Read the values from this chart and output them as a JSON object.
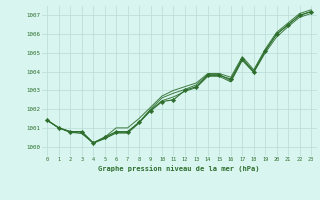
{
  "x": [
    0,
    1,
    2,
    3,
    4,
    5,
    6,
    7,
    8,
    9,
    10,
    11,
    12,
    13,
    14,
    15,
    16,
    17,
    18,
    19,
    20,
    21,
    22,
    23
  ],
  "line1": [
    1001.4,
    1001.0,
    1000.8,
    1000.8,
    1000.2,
    1000.5,
    1000.8,
    1000.8,
    1001.3,
    1001.9,
    1002.4,
    1002.5,
    1003.0,
    1003.2,
    1003.8,
    1003.8,
    1003.6,
    1004.7,
    1004.0,
    1005.1,
    1006.0,
    1006.5,
    1007.0,
    1007.2
  ],
  "line2": [
    1001.4,
    1001.0,
    1000.8,
    1000.7,
    1000.2,
    1000.45,
    1000.75,
    1000.75,
    1001.3,
    1002.0,
    1002.6,
    1002.85,
    1003.05,
    1003.3,
    1003.85,
    1003.85,
    1003.5,
    1004.65,
    1004.0,
    1005.1,
    1006.0,
    1006.5,
    1007.0,
    1007.2
  ],
  "line3": [
    1001.4,
    1001.0,
    1000.75,
    1000.72,
    1000.18,
    1000.42,
    1000.72,
    1000.72,
    1001.25,
    1001.95,
    1002.45,
    1002.65,
    1002.95,
    1003.15,
    1003.75,
    1003.75,
    1003.45,
    1004.6,
    1003.95,
    1005.0,
    1005.85,
    1006.4,
    1006.9,
    1007.1
  ],
  "line_upper": [
    1001.4,
    1001.0,
    1000.8,
    1000.8,
    1000.2,
    1000.5,
    1001.0,
    1001.0,
    1001.5,
    1002.1,
    1002.7,
    1003.0,
    1003.2,
    1003.4,
    1003.9,
    1003.9,
    1003.7,
    1004.8,
    1004.1,
    1005.2,
    1006.1,
    1006.6,
    1007.1,
    1007.3
  ],
  "ylim": [
    999.5,
    1007.5
  ],
  "yticks": [
    1000,
    1001,
    1002,
    1003,
    1004,
    1005,
    1006,
    1007
  ],
  "xlabel": "Graphe pression niveau de la mer (hPa)",
  "line_color": "#2d6e2d",
  "marker_color": "#2d6e2d",
  "bg_color": "#d9f5f0",
  "grid_color": "#b8dcd6",
  "title_color": "#2d6e2d"
}
